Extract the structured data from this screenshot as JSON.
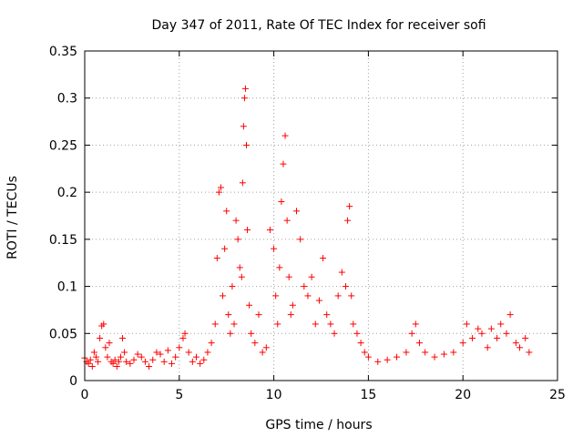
{
  "chart_data": {
    "type": "scatter",
    "title": "Day 347 of 2011, Rate Of TEC Index for receiver sofi",
    "xlabel": "GPS time / hours",
    "ylabel": "ROTI / TECUs",
    "xlim": [
      0,
      25
    ],
    "ylim": [
      0,
      0.35
    ],
    "xticks": [
      0,
      5,
      10,
      15,
      20,
      25
    ],
    "yticks": [
      0,
      0.05,
      0.1,
      0.15,
      0.2,
      0.25,
      0.3,
      0.35
    ],
    "xtick_labels": [
      "0",
      "5",
      "10",
      "15",
      "20",
      "25"
    ],
    "ytick_labels": [
      "0",
      "0.05",
      "0.1",
      "0.15",
      "0.2",
      "0.25",
      "0.3",
      "0.35"
    ],
    "grid": true,
    "legend": "none",
    "marker": "+",
    "color": "#ff0000",
    "series": [
      {
        "points": [
          [
            0.0,
            0.024
          ],
          [
            0.1,
            0.02
          ],
          [
            0.2,
            0.018
          ],
          [
            0.3,
            0.022
          ],
          [
            0.4,
            0.015
          ],
          [
            0.5,
            0.03
          ],
          [
            0.6,
            0.025
          ],
          [
            0.7,
            0.02
          ],
          [
            0.8,
            0.045
          ],
          [
            0.9,
            0.058
          ],
          [
            1.0,
            0.06
          ],
          [
            1.1,
            0.035
          ],
          [
            1.2,
            0.025
          ],
          [
            1.3,
            0.04
          ],
          [
            1.4,
            0.02
          ],
          [
            1.5,
            0.018
          ],
          [
            1.6,
            0.022
          ],
          [
            1.7,
            0.015
          ],
          [
            1.8,
            0.02
          ],
          [
            1.9,
            0.025
          ],
          [
            2.0,
            0.045
          ],
          [
            2.1,
            0.03
          ],
          [
            2.2,
            0.02
          ],
          [
            2.4,
            0.018
          ],
          [
            2.6,
            0.022
          ],
          [
            2.8,
            0.028
          ],
          [
            3.0,
            0.025
          ],
          [
            3.2,
            0.02
          ],
          [
            3.4,
            0.015
          ],
          [
            3.6,
            0.022
          ],
          [
            3.8,
            0.03
          ],
          [
            4.0,
            0.028
          ],
          [
            4.2,
            0.02
          ],
          [
            4.4,
            0.032
          ],
          [
            4.6,
            0.018
          ],
          [
            4.8,
            0.025
          ],
          [
            5.0,
            0.035
          ],
          [
            5.2,
            0.045
          ],
          [
            5.3,
            0.05
          ],
          [
            5.5,
            0.03
          ],
          [
            5.7,
            0.02
          ],
          [
            5.9,
            0.025
          ],
          [
            6.1,
            0.018
          ],
          [
            6.3,
            0.022
          ],
          [
            6.5,
            0.03
          ],
          [
            6.7,
            0.04
          ],
          [
            6.9,
            0.06
          ],
          [
            7.0,
            0.13
          ],
          [
            7.1,
            0.2
          ],
          [
            7.2,
            0.205
          ],
          [
            7.3,
            0.09
          ],
          [
            7.4,
            0.14
          ],
          [
            7.5,
            0.18
          ],
          [
            7.6,
            0.07
          ],
          [
            7.7,
            0.05
          ],
          [
            7.8,
            0.1
          ],
          [
            7.9,
            0.06
          ],
          [
            8.0,
            0.17
          ],
          [
            8.1,
            0.15
          ],
          [
            8.2,
            0.12
          ],
          [
            8.3,
            0.11
          ],
          [
            8.35,
            0.21
          ],
          [
            8.4,
            0.27
          ],
          [
            8.45,
            0.3
          ],
          [
            8.5,
            0.31
          ],
          [
            8.55,
            0.25
          ],
          [
            8.6,
            0.16
          ],
          [
            8.7,
            0.08
          ],
          [
            8.8,
            0.05
          ],
          [
            9.0,
            0.04
          ],
          [
            9.2,
            0.07
          ],
          [
            9.4,
            0.03
          ],
          [
            9.6,
            0.035
          ],
          [
            9.8,
            0.16
          ],
          [
            10.0,
            0.14
          ],
          [
            10.1,
            0.09
          ],
          [
            10.2,
            0.06
          ],
          [
            10.3,
            0.12
          ],
          [
            10.4,
            0.19
          ],
          [
            10.5,
            0.23
          ],
          [
            10.6,
            0.26
          ],
          [
            10.7,
            0.17
          ],
          [
            10.8,
            0.11
          ],
          [
            10.9,
            0.07
          ],
          [
            11.0,
            0.08
          ],
          [
            11.2,
            0.18
          ],
          [
            11.4,
            0.15
          ],
          [
            11.6,
            0.1
          ],
          [
            11.8,
            0.09
          ],
          [
            12.0,
            0.11
          ],
          [
            12.2,
            0.06
          ],
          [
            12.4,
            0.085
          ],
          [
            12.6,
            0.13
          ],
          [
            12.8,
            0.07
          ],
          [
            13.0,
            0.06
          ],
          [
            13.2,
            0.05
          ],
          [
            13.4,
            0.09
          ],
          [
            13.6,
            0.115
          ],
          [
            13.8,
            0.1
          ],
          [
            13.9,
            0.17
          ],
          [
            14.0,
            0.185
          ],
          [
            14.1,
            0.09
          ],
          [
            14.2,
            0.06
          ],
          [
            14.4,
            0.05
          ],
          [
            14.6,
            0.04
          ],
          [
            14.8,
            0.03
          ],
          [
            15.0,
            0.025
          ],
          [
            15.5,
            0.02
          ],
          [
            16.0,
            0.022
          ],
          [
            16.5,
            0.025
          ],
          [
            17.0,
            0.03
          ],
          [
            17.3,
            0.05
          ],
          [
            17.5,
            0.06
          ],
          [
            17.7,
            0.04
          ],
          [
            18.0,
            0.03
          ],
          [
            18.5,
            0.025
          ],
          [
            19.0,
            0.028
          ],
          [
            19.5,
            0.03
          ],
          [
            20.0,
            0.04
          ],
          [
            20.2,
            0.06
          ],
          [
            20.5,
            0.045
          ],
          [
            20.8,
            0.055
          ],
          [
            21.0,
            0.05
          ],
          [
            21.3,
            0.035
          ],
          [
            21.5,
            0.055
          ],
          [
            21.8,
            0.045
          ],
          [
            22.0,
            0.06
          ],
          [
            22.3,
            0.05
          ],
          [
            22.5,
            0.07
          ],
          [
            22.8,
            0.04
          ],
          [
            23.0,
            0.035
          ],
          [
            23.3,
            0.045
          ],
          [
            23.5,
            0.03
          ]
        ]
      }
    ]
  }
}
